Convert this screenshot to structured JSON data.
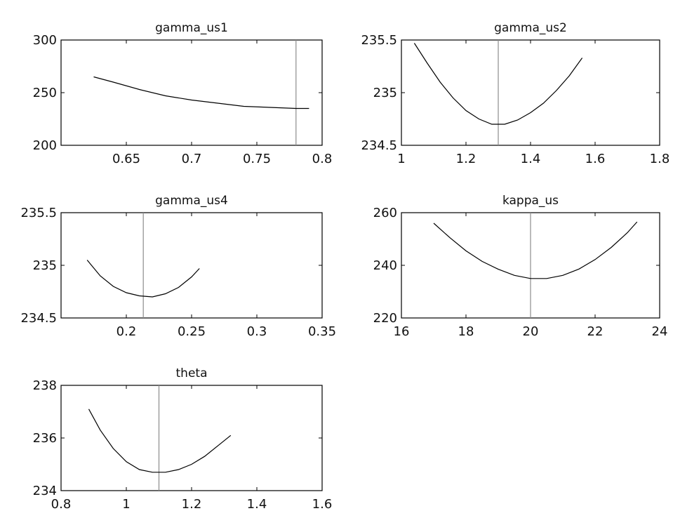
{
  "chart_data": [
    {
      "type": "line",
      "title": "gamma_us1",
      "xlim": [
        0.6,
        0.8
      ],
      "ylim": [
        200,
        300
      ],
      "xticks": [
        0.65,
        0.7,
        0.75,
        0.8
      ],
      "yticks": [
        200,
        250,
        300
      ],
      "xtick_labels": [
        "0.65",
        "0.7",
        "0.75",
        "0.8"
      ],
      "ytick_labels": [
        "200",
        "250",
        "300"
      ],
      "marker_x": 0.78,
      "x": [
        0.625,
        0.64,
        0.66,
        0.68,
        0.7,
        0.72,
        0.74,
        0.76,
        0.78,
        0.79
      ],
      "y": [
        265,
        260,
        253,
        247,
        243,
        240,
        237,
        236,
        235,
        235
      ]
    },
    {
      "type": "line",
      "title": "gamma_us2",
      "xlim": [
        1,
        1.8
      ],
      "ylim": [
        234.5,
        235.5
      ],
      "xticks": [
        1,
        1.2,
        1.4,
        1.6,
        1.8
      ],
      "yticks": [
        234.5,
        235,
        235.5
      ],
      "xtick_labels": [
        "1",
        "1.2",
        "1.4",
        "1.6",
        "1.8"
      ],
      "ytick_labels": [
        "234.5",
        "235",
        "235.5"
      ],
      "marker_x": 1.3,
      "x": [
        1.04,
        1.08,
        1.12,
        1.16,
        1.2,
        1.24,
        1.28,
        1.32,
        1.36,
        1.4,
        1.44,
        1.48,
        1.52,
        1.56
      ],
      "y": [
        235.47,
        235.28,
        235.1,
        234.95,
        234.83,
        234.75,
        234.7,
        234.7,
        234.74,
        234.81,
        234.9,
        235.02,
        235.16,
        235.33
      ]
    },
    {
      "type": "line",
      "title": "gamma_us4",
      "xlim": [
        0.15,
        0.35
      ],
      "ylim": [
        234.5,
        235.5
      ],
      "xticks": [
        0.2,
        0.25,
        0.3,
        0.35
      ],
      "yticks": [
        234.5,
        235,
        235.5
      ],
      "xtick_labels": [
        "0.2",
        "0.25",
        "0.3",
        "0.35"
      ],
      "ytick_labels": [
        "234.5",
        "235",
        "235.5"
      ],
      "marker_x": 0.213,
      "x": [
        0.17,
        0.18,
        0.19,
        0.2,
        0.21,
        0.22,
        0.23,
        0.24,
        0.25,
        0.256
      ],
      "y": [
        235.05,
        234.9,
        234.8,
        234.74,
        234.71,
        234.7,
        234.73,
        234.79,
        234.89,
        234.97
      ]
    },
    {
      "type": "line",
      "title": "kappa_us",
      "xlim": [
        16,
        24
      ],
      "ylim": [
        220,
        260
      ],
      "xticks": [
        16,
        18,
        20,
        22,
        24
      ],
      "yticks": [
        220,
        240,
        260
      ],
      "xtick_labels": [
        "16",
        "18",
        "20",
        "22",
        "24"
      ],
      "ytick_labels": [
        "220",
        "240",
        "260"
      ],
      "marker_x": 20,
      "x": [
        17.0,
        17.5,
        18.0,
        18.5,
        19.0,
        19.5,
        20.0,
        20.5,
        21.0,
        21.5,
        22.0,
        22.5,
        23.0,
        23.3
      ],
      "y": [
        256,
        250.5,
        245.5,
        241.5,
        238.5,
        236.2,
        235.0,
        235.0,
        236.2,
        238.6,
        242.2,
        246.8,
        252.4,
        256.5
      ]
    },
    {
      "type": "line",
      "title": "theta",
      "xlim": [
        0.8,
        1.6
      ],
      "ylim": [
        234,
        238
      ],
      "xticks": [
        0.8,
        1,
        1.2,
        1.4,
        1.6
      ],
      "yticks": [
        234,
        236,
        238
      ],
      "xtick_labels": [
        "0.8",
        "1",
        "1.2",
        "1.4",
        "1.6"
      ],
      "ytick_labels": [
        "234",
        "236",
        "238"
      ],
      "marker_x": 1.1,
      "x": [
        0.885,
        0.92,
        0.96,
        1.0,
        1.04,
        1.08,
        1.12,
        1.16,
        1.2,
        1.24,
        1.28,
        1.32
      ],
      "y": [
        237.1,
        236.3,
        235.6,
        235.1,
        234.8,
        234.7,
        234.7,
        234.8,
        235.0,
        235.3,
        235.7,
        236.1
      ]
    }
  ]
}
